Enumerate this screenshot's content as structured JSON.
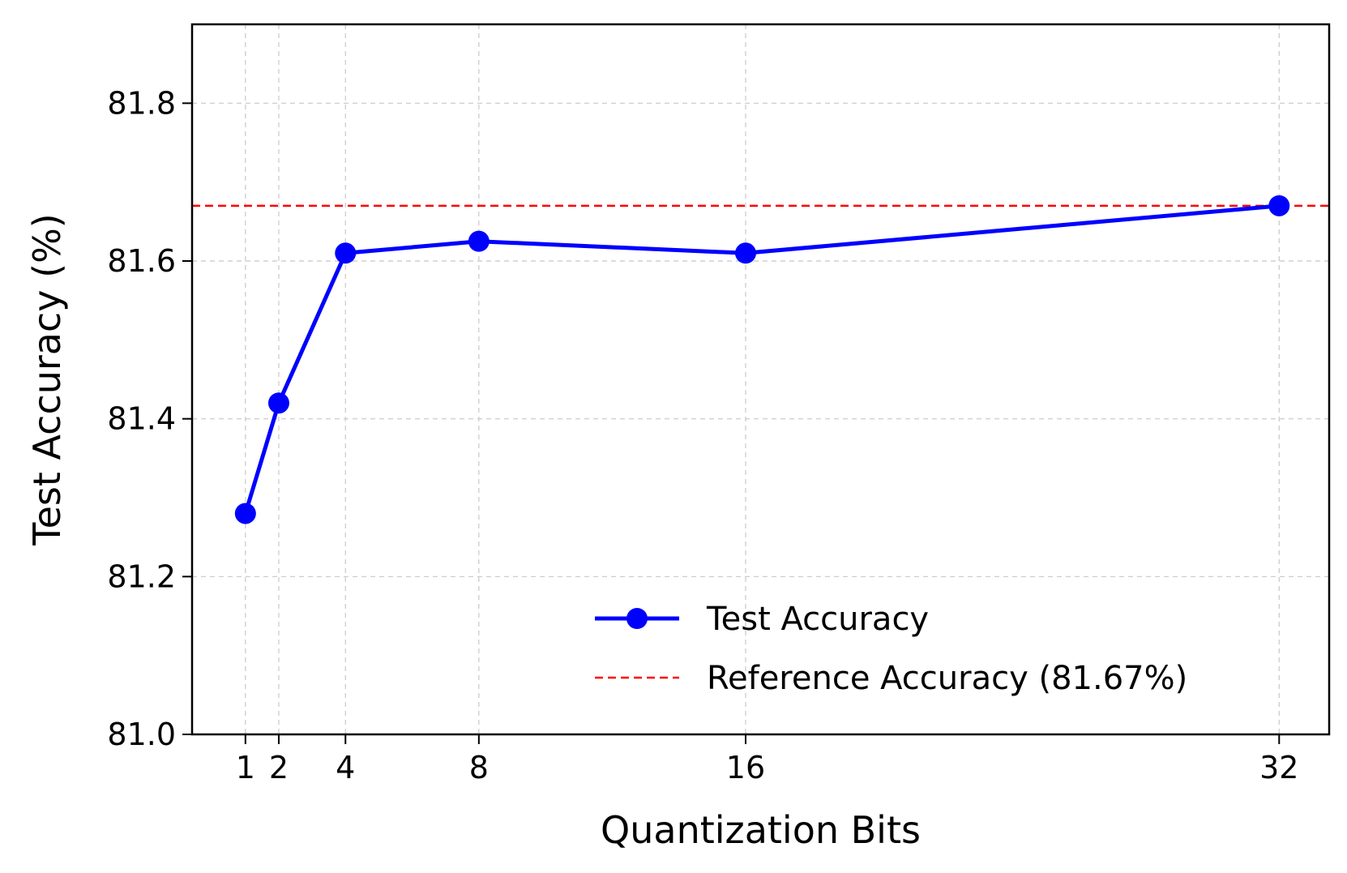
{
  "chart_data": {
    "type": "line",
    "title": "",
    "xlabel": "Quantization Bits",
    "ylabel": "Test Accuracy (%)",
    "x": [
      1,
      2,
      4,
      8,
      16,
      32
    ],
    "xticks": [
      "1",
      "2",
      "4",
      "8",
      "16",
      "32"
    ],
    "xlim": [
      -0.6,
      33.5
    ],
    "ylim": [
      81.0,
      81.9
    ],
    "yticks": [
      "81.0",
      "81.2",
      "81.4",
      "81.6",
      "81.8"
    ],
    "series": [
      {
        "name": "Test Accuracy",
        "values": [
          81.28,
          81.42,
          81.61,
          81.625,
          81.61,
          81.67
        ],
        "color": "#0000ff",
        "style": "solid",
        "marker": "circle"
      }
    ],
    "reference_line": {
      "name": "Reference Accuracy (81.67%)",
      "y": 81.67,
      "color": "#ff0000",
      "style": "dashed"
    },
    "grid": true,
    "legend_position": "lower-right"
  }
}
